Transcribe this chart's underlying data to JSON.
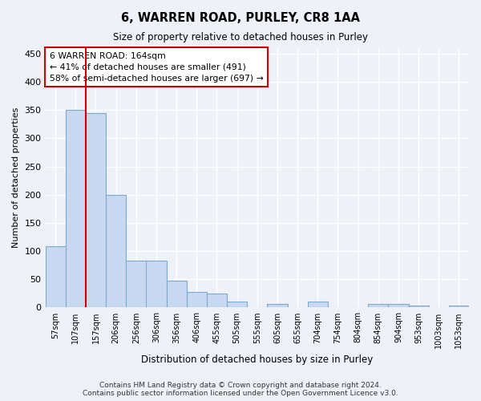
{
  "title": "6, WARREN ROAD, PURLEY, CR8 1AA",
  "subtitle": "Size of property relative to detached houses in Purley",
  "xlabel": "Distribution of detached houses by size in Purley",
  "ylabel": "Number of detached properties",
  "bins": [
    "57sqm",
    "107sqm",
    "157sqm",
    "206sqm",
    "256sqm",
    "306sqm",
    "356sqm",
    "406sqm",
    "455sqm",
    "505sqm",
    "555sqm",
    "605sqm",
    "655sqm",
    "704sqm",
    "754sqm",
    "804sqm",
    "854sqm",
    "904sqm",
    "953sqm",
    "1003sqm",
    "1053sqm"
  ],
  "bar_heights": [
    108,
    350,
    345,
    200,
    83,
    83,
    47,
    27,
    25,
    10,
    0,
    7,
    0,
    10,
    0,
    0,
    7,
    7,
    3,
    0,
    3
  ],
  "bar_color": "#c8d8f0",
  "bar_edge_color": "#7aaad0",
  "vline_color": "#cc0000",
  "annotation_text": "6 WARREN ROAD: 164sqm\n← 41% of detached houses are smaller (491)\n58% of semi-detached houses are larger (697) →",
  "annotation_box_color": "white",
  "annotation_box_edge": "#cc0000",
  "ylim": [
    0,
    460
  ],
  "yticks": [
    0,
    50,
    100,
    150,
    200,
    250,
    300,
    350,
    400,
    450
  ],
  "footer": "Contains HM Land Registry data © Crown copyright and database right 2024.\nContains public sector information licensed under the Open Government Licence v3.0.",
  "bg_color": "#eef2f8",
  "grid_color": "white",
  "figsize": [
    6.0,
    5.0
  ],
  "dpi": 100
}
